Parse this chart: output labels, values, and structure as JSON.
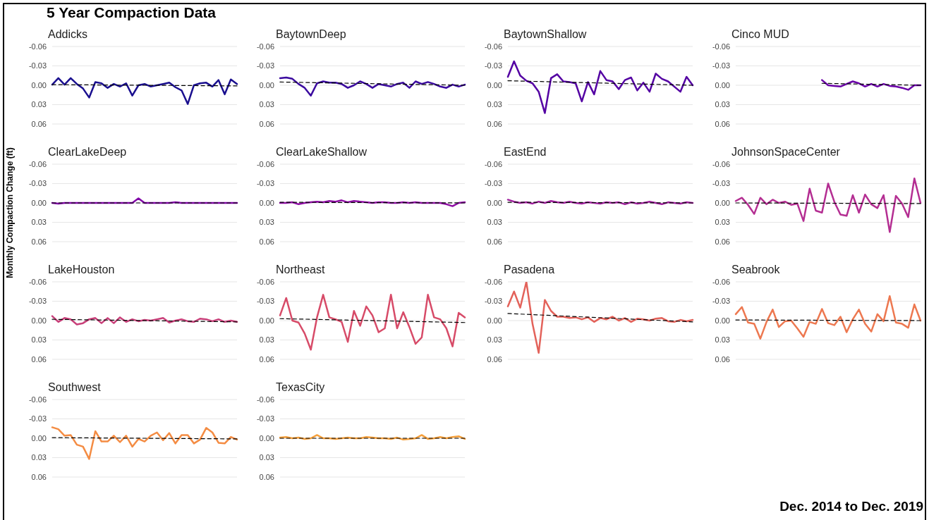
{
  "chart_data": [
    {
      "type": "line",
      "title": "Addicks",
      "annotations": [
        "5 Year Compaction Data"
      ],
      "categories": [
        null,
        null,
        null,
        null,
        null,
        null,
        null,
        null,
        null,
        null,
        null,
        null,
        null,
        null,
        null,
        null,
        null,
        null,
        null,
        null,
        null,
        null,
        null,
        null,
        null,
        null,
        null,
        null,
        null,
        null,
        null
      ],
      "ylim": [
        0.06,
        -0.06
      ],
      "yticks": [
        {
          "value": -0.06,
          "label": "-0.06"
        },
        {
          "value": -0.03,
          "label": "-0.03"
        },
        {
          "value": 0,
          "label": "0.00"
        },
        {
          "value": 0.03,
          "label": "0.03"
        },
        {
          "value": 0.06,
          "label": "0.06"
        }
      ],
      "grid": "y",
      "series": [
        {
          "color": "#1a0f8f",
          "values": [
            -0.001,
            -0.011,
            -0.001,
            -0.011,
            -0.002,
            0.005,
            0.019,
            -0.005,
            -0.003,
            0.004,
            -0.002,
            0.002,
            -0.003,
            0.016,
            0.0,
            -0.002,
            0.002,
            0.0,
            -0.002,
            -0.004,
            0.003,
            0.008,
            0.029,
            0.0,
            -0.003,
            -0.004,
            0.002,
            -0.008,
            0.014,
            -0.009,
            -0.002
          ]
        },
        {
          "type": "line",
          "color": "#000000",
          "line_style": "dashed",
          "values": [
            -0.001,
            null,
            null,
            null,
            null,
            null,
            null,
            null,
            null,
            null,
            null,
            null,
            null,
            null,
            null,
            null,
            null,
            null,
            null,
            null,
            null,
            null,
            null,
            null,
            null,
            null,
            null,
            null,
            null,
            null,
            0.001
          ]
        }
      ]
    },
    {
      "type": "line",
      "title": "BaytownDeep",
      "categories": [
        null,
        null,
        null,
        null,
        null,
        null,
        null,
        null,
        null,
        null,
        null,
        null,
        null,
        null,
        null,
        null,
        null,
        null,
        null,
        null,
        null,
        null,
        null,
        null,
        null,
        null,
        null,
        null,
        null,
        null,
        null
      ],
      "ylim": [
        0.06,
        -0.06
      ],
      "yticks": [
        {
          "value": -0.06,
          "label": "-0.06"
        },
        {
          "value": -0.03,
          "label": "-0.03"
        },
        {
          "value": 0,
          "label": "0.00"
        },
        {
          "value": 0.03,
          "label": "0.03"
        },
        {
          "value": 0.06,
          "label": "0.06"
        }
      ],
      "grid": "y",
      "series": [
        {
          "color": "#3b0a9f",
          "values": [
            -0.011,
            -0.012,
            -0.01,
            -0.002,
            0.004,
            0.016,
            -0.003,
            -0.006,
            -0.004,
            -0.004,
            -0.002,
            0.004,
            0.0,
            -0.006,
            -0.002,
            0.004,
            -0.002,
            0.0,
            0.002,
            -0.002,
            -0.004,
            0.004,
            -0.006,
            -0.002,
            -0.005,
            -0.002,
            0.002,
            0.004,
            -0.001,
            0.002,
            -0.001
          ]
        },
        {
          "type": "line",
          "color": "#000000",
          "line_style": "dashed",
          "values": [
            -0.005,
            null,
            null,
            null,
            null,
            null,
            null,
            null,
            null,
            null,
            null,
            null,
            null,
            null,
            null,
            null,
            null,
            null,
            null,
            null,
            null,
            null,
            null,
            null,
            null,
            null,
            null,
            null,
            null,
            null,
            0.0
          ]
        }
      ]
    },
    {
      "type": "line",
      "title": "BaytownShallow",
      "categories": [
        null,
        null,
        null,
        null,
        null,
        null,
        null,
        null,
        null,
        null,
        null,
        null,
        null,
        null,
        null,
        null,
        null,
        null,
        null,
        null,
        null,
        null,
        null,
        null,
        null,
        null,
        null,
        null,
        null,
        null,
        null
      ],
      "ylim": [
        0.06,
        -0.06
      ],
      "yticks": [
        {
          "value": -0.06,
          "label": "-0.06"
        },
        {
          "value": -0.03,
          "label": "-0.03"
        },
        {
          "value": 0,
          "label": "0.00"
        },
        {
          "value": 0.03,
          "label": "0.03"
        },
        {
          "value": 0.06,
          "label": "0.06"
        }
      ],
      "grid": "y",
      "series": [
        {
          "color": "#5402a3",
          "values": [
            -0.013,
            -0.037,
            -0.015,
            -0.007,
            -0.003,
            0.01,
            0.043,
            -0.011,
            -0.017,
            -0.006,
            -0.005,
            -0.003,
            0.025,
            -0.005,
            0.014,
            -0.022,
            -0.008,
            -0.006,
            0.006,
            -0.008,
            -0.012,
            0.008,
            -0.004,
            0.01,
            -0.018,
            -0.01,
            -0.006,
            0.002,
            0.01,
            -0.013,
            0.0
          ]
        },
        {
          "type": "line",
          "color": "#000000",
          "line_style": "dashed",
          "values": [
            -0.007,
            null,
            null,
            null,
            null,
            null,
            null,
            null,
            null,
            null,
            null,
            null,
            null,
            null,
            null,
            null,
            null,
            null,
            null,
            null,
            null,
            null,
            null,
            null,
            null,
            null,
            null,
            null,
            null,
            null,
            0.0
          ]
        }
      ]
    },
    {
      "type": "line",
      "title": "Cinco MUD",
      "categories": [
        null,
        null,
        null,
        null,
        null,
        null,
        null,
        null,
        null,
        null,
        null,
        null,
        null,
        null,
        null,
        null,
        null,
        null,
        null,
        null,
        null,
        null,
        null,
        null,
        null,
        null,
        null,
        null,
        null,
        null,
        null
      ],
      "ylim": [
        0.06,
        -0.06
      ],
      "yticks": [
        {
          "value": -0.06,
          "label": "-0.06"
        },
        {
          "value": -0.03,
          "label": "-0.03"
        },
        {
          "value": 0,
          "label": "0.00"
        },
        {
          "value": 0.03,
          "label": "0.03"
        },
        {
          "value": 0.06,
          "label": "0.06"
        }
      ],
      "grid": "y",
      "series": [
        {
          "color": "#6a00a8",
          "values": [
            null,
            null,
            null,
            null,
            null,
            null,
            null,
            null,
            null,
            null,
            null,
            null,
            null,
            null,
            -0.008,
            0.0,
            0.001,
            0.002,
            -0.002,
            -0.006,
            -0.003,
            0.002,
            -0.002,
            0.002,
            -0.002,
            0.001,
            0.002,
            0.004,
            0.007,
            0.0,
            0.0
          ]
        },
        {
          "type": "line",
          "color": "#000000",
          "line_style": "dashed",
          "values": [
            null,
            null,
            null,
            null,
            null,
            null,
            null,
            null,
            null,
            null,
            null,
            null,
            null,
            null,
            -0.003,
            null,
            null,
            null,
            null,
            null,
            null,
            null,
            null,
            null,
            null,
            null,
            null,
            null,
            null,
            null,
            0.0
          ]
        }
      ]
    },
    {
      "type": "line",
      "title": "ClearLakeDeep",
      "ylabel": "Monthly Compaction Change (ft)",
      "categories": [
        null,
        null,
        null,
        null,
        null,
        null,
        null,
        null,
        null,
        null,
        null,
        null,
        null,
        null,
        null,
        null,
        null,
        null,
        null,
        null,
        null,
        null,
        null,
        null,
        null,
        null,
        null,
        null,
        null,
        null,
        null
      ],
      "ylim": [
        0.06,
        -0.06
      ],
      "yticks": [
        {
          "value": -0.06,
          "label": "-0.06"
        },
        {
          "value": -0.03,
          "label": "-0.03"
        },
        {
          "value": 0,
          "label": "0.00"
        },
        {
          "value": 0.03,
          "label": "0.03"
        },
        {
          "value": 0.06,
          "label": "0.06"
        }
      ],
      "grid": "y",
      "series": [
        {
          "color": "#8104a7",
          "values": [
            0.0,
            0.001,
            0.0,
            0.0,
            0.0,
            0.0,
            0.0,
            0.0,
            0.0,
            0.0,
            0.0,
            0.0,
            0.0,
            0.0,
            -0.007,
            0.0,
            0.0,
            0.0,
            0.0,
            0.0,
            -0.001,
            0.0,
            0.0,
            0.0,
            0.0,
            0.0,
            0.0,
            0.0,
            0.0,
            0.0,
            0.0
          ]
        },
        {
          "type": "line",
          "color": "#000000",
          "line_style": "dashed",
          "values": [
            0.0,
            null,
            null,
            null,
            null,
            null,
            null,
            null,
            null,
            null,
            null,
            null,
            null,
            null,
            null,
            null,
            null,
            null,
            null,
            null,
            null,
            null,
            null,
            null,
            null,
            null,
            null,
            null,
            null,
            null,
            0.0
          ]
        }
      ]
    },
    {
      "type": "line",
      "title": "ClearLakeShallow",
      "categories": [
        null,
        null,
        null,
        null,
        null,
        null,
        null,
        null,
        null,
        null,
        null,
        null,
        null,
        null,
        null,
        null,
        null,
        null,
        null,
        null,
        null,
        null,
        null,
        null,
        null,
        null,
        null,
        null,
        null,
        null,
        null
      ],
      "ylim": [
        0.06,
        -0.06
      ],
      "yticks": [
        {
          "value": -0.06,
          "label": "-0.06"
        },
        {
          "value": -0.03,
          "label": "-0.03"
        },
        {
          "value": 0,
          "label": "0.00"
        },
        {
          "value": 0.03,
          "label": "0.03"
        },
        {
          "value": 0.06,
          "label": "0.06"
        }
      ],
      "grid": "y",
      "series": [
        {
          "color": "#8f0da4",
          "values": [
            0.0,
            0.0,
            -0.001,
            0.002,
            0.0,
            -0.001,
            -0.002,
            -0.001,
            -0.003,
            -0.002,
            -0.004,
            -0.001,
            -0.003,
            -0.002,
            -0.001,
            0.0,
            -0.001,
            -0.001,
            0.0,
            0.0,
            -0.001,
            0.0,
            -0.001,
            0.0,
            0.0,
            0.0,
            0.0,
            0.002,
            0.005,
            0.0,
            -0.001
          ]
        },
        {
          "type": "line",
          "color": "#000000",
          "line_style": "dashed",
          "values": [
            -0.001,
            null,
            null,
            null,
            null,
            null,
            null,
            null,
            null,
            null,
            null,
            null,
            null,
            null,
            null,
            null,
            null,
            null,
            null,
            null,
            null,
            null,
            null,
            null,
            null,
            null,
            null,
            null,
            null,
            null,
            0.0
          ]
        }
      ]
    },
    {
      "type": "line",
      "title": "EastEnd",
      "categories": [
        null,
        null,
        null,
        null,
        null,
        null,
        null,
        null,
        null,
        null,
        null,
        null,
        null,
        null,
        null,
        null,
        null,
        null,
        null,
        null,
        null,
        null,
        null,
        null,
        null,
        null,
        null,
        null,
        null,
        null,
        null
      ],
      "ylim": [
        0.06,
        -0.06
      ],
      "yticks": [
        {
          "value": -0.06,
          "label": "-0.06"
        },
        {
          "value": -0.03,
          "label": "-0.03"
        },
        {
          "value": 0,
          "label": "0.00"
        },
        {
          "value": 0.03,
          "label": "0.03"
        },
        {
          "value": 0.06,
          "label": "0.06"
        }
      ],
      "grid": "y",
      "series": [
        {
          "color": "#a0209d",
          "values": [
            -0.005,
            -0.002,
            0.0,
            -0.001,
            0.001,
            -0.002,
            0.0,
            -0.003,
            -0.001,
            0.0,
            -0.002,
            0.0,
            0.001,
            -0.001,
            0.0,
            0.001,
            -0.001,
            0.0,
            -0.001,
            0.002,
            -0.001,
            0.001,
            0.0,
            -0.002,
            0.0,
            0.002,
            -0.001,
            0.0,
            0.001,
            -0.001,
            0.0
          ]
        },
        {
          "type": "line",
          "color": "#000000",
          "line_style": "dashed",
          "values": [
            -0.001,
            null,
            null,
            null,
            null,
            null,
            null,
            null,
            null,
            null,
            null,
            null,
            null,
            null,
            null,
            null,
            null,
            null,
            null,
            null,
            null,
            null,
            null,
            null,
            null,
            null,
            null,
            null,
            null,
            null,
            0.0
          ]
        }
      ]
    },
    {
      "type": "line",
      "title": "JohnsonSpaceCenter",
      "categories": [
        null,
        null,
        null,
        null,
        null,
        null,
        null,
        null,
        null,
        null,
        null,
        null,
        null,
        null,
        null,
        null,
        null,
        null,
        null,
        null,
        null,
        null,
        null,
        null,
        null,
        null,
        null,
        null,
        null,
        null,
        null
      ],
      "ylim": [
        0.06,
        -0.06
      ],
      "yticks": [
        {
          "value": -0.06,
          "label": "-0.06"
        },
        {
          "value": -0.03,
          "label": "-0.03"
        },
        {
          "value": 0,
          "label": "0.00"
        },
        {
          "value": 0.03,
          "label": "0.03"
        },
        {
          "value": 0.06,
          "label": "0.06"
        }
      ],
      "grid": "y",
      "series": [
        {
          "color": "#b42e92",
          "values": [
            -0.003,
            -0.008,
            0.003,
            0.017,
            -0.008,
            0.002,
            -0.005,
            0.0,
            -0.002,
            0.003,
            0.001,
            0.028,
            -0.022,
            0.012,
            0.015,
            -0.03,
            -0.002,
            0.018,
            0.02,
            -0.012,
            0.015,
            -0.013,
            0.002,
            0.008,
            -0.012,
            0.045,
            -0.011,
            0.001,
            0.022,
            -0.038,
            0.0
          ]
        },
        {
          "type": "line",
          "color": "#000000",
          "line_style": "dashed",
          "values": [
            0.0,
            null,
            null,
            null,
            null,
            null,
            null,
            null,
            null,
            null,
            null,
            null,
            null,
            null,
            null,
            null,
            null,
            null,
            null,
            null,
            null,
            null,
            null,
            null,
            null,
            null,
            null,
            null,
            null,
            null,
            0.001
          ]
        }
      ]
    },
    {
      "type": "line",
      "title": "LakeHouston",
      "categories": [
        null,
        null,
        null,
        null,
        null,
        null,
        null,
        null,
        null,
        null,
        null,
        null,
        null,
        null,
        null,
        null,
        null,
        null,
        null,
        null,
        null,
        null,
        null,
        null,
        null,
        null,
        null,
        null,
        null,
        null,
        null
      ],
      "ylim": [
        0.06,
        -0.06
      ],
      "yticks": [
        {
          "value": -0.06,
          "label": "-0.06"
        },
        {
          "value": -0.03,
          "label": "-0.03"
        },
        {
          "value": 0,
          "label": "0.00"
        },
        {
          "value": 0.03,
          "label": "0.03"
        },
        {
          "value": 0.06,
          "label": "0.06"
        }
      ],
      "grid": "y",
      "series": [
        {
          "color": "#c9407a",
          "values": [
            -0.007,
            0.002,
            -0.004,
            -0.002,
            0.006,
            0.004,
            -0.002,
            -0.004,
            0.004,
            -0.004,
            0.004,
            -0.005,
            0.002,
            -0.002,
            0.001,
            -0.001,
            0.0,
            -0.002,
            -0.004,
            0.003,
            0.0,
            -0.002,
            0.001,
            0.002,
            -0.003,
            -0.002,
            0.001,
            -0.002,
            0.002,
            0.0,
            0.002
          ]
        },
        {
          "type": "line",
          "color": "#000000",
          "line_style": "dashed",
          "values": [
            -0.002,
            null,
            null,
            null,
            null,
            null,
            null,
            null,
            null,
            null,
            null,
            null,
            null,
            null,
            null,
            null,
            null,
            null,
            null,
            null,
            null,
            null,
            null,
            null,
            null,
            null,
            null,
            null,
            null,
            null,
            0.002
          ]
        }
      ]
    },
    {
      "type": "line",
      "title": "Northeast",
      "categories": [
        null,
        null,
        null,
        null,
        null,
        null,
        null,
        null,
        null,
        null,
        null,
        null,
        null,
        null,
        null,
        null,
        null,
        null,
        null,
        null,
        null,
        null,
        null,
        null,
        null,
        null,
        null,
        null,
        null,
        null,
        null
      ],
      "ylim": [
        0.06,
        -0.06
      ],
      "yticks": [
        {
          "value": -0.06,
          "label": "-0.06"
        },
        {
          "value": -0.03,
          "label": "-0.03"
        },
        {
          "value": 0,
          "label": "0.00"
        },
        {
          "value": 0.03,
          "label": "0.03"
        },
        {
          "value": 0.06,
          "label": "0.06"
        }
      ],
      "grid": "y",
      "series": [
        {
          "color": "#d74b68",
          "values": [
            -0.008,
            -0.035,
            0.0,
            0.003,
            0.02,
            0.045,
            -0.005,
            -0.04,
            -0.005,
            -0.002,
            0.002,
            0.033,
            -0.015,
            0.008,
            -0.022,
            -0.008,
            0.018,
            0.012,
            -0.04,
            0.012,
            -0.013,
            0.01,
            0.036,
            0.026,
            -0.04,
            -0.005,
            -0.002,
            0.012,
            0.04,
            -0.012,
            -0.005
          ]
        },
        {
          "type": "line",
          "color": "#000000",
          "line_style": "dashed",
          "values": [
            -0.003,
            null,
            null,
            null,
            null,
            null,
            null,
            null,
            null,
            null,
            null,
            null,
            null,
            null,
            null,
            null,
            null,
            null,
            null,
            null,
            null,
            null,
            null,
            null,
            null,
            null,
            null,
            null,
            null,
            null,
            0.003
          ]
        }
      ]
    },
    {
      "type": "line",
      "title": "Pasadena",
      "categories": [
        null,
        null,
        null,
        null,
        null,
        null,
        null,
        null,
        null,
        null,
        null,
        null,
        null,
        null,
        null,
        null,
        null,
        null,
        null,
        null,
        null,
        null,
        null,
        null,
        null,
        null,
        null,
        null,
        null,
        null,
        null
      ],
      "ylim": [
        0.06,
        -0.06
      ],
      "yticks": [
        {
          "value": -0.06,
          "label": "-0.06"
        },
        {
          "value": -0.03,
          "label": "-0.03"
        },
        {
          "value": 0,
          "label": "0.00"
        },
        {
          "value": 0.03,
          "label": "0.03"
        },
        {
          "value": 0.06,
          "label": "0.06"
        }
      ],
      "grid": "y",
      "series": [
        {
          "color": "#e3625a",
          "values": [
            -0.022,
            -0.045,
            -0.02,
            -0.06,
            0.005,
            0.05,
            -0.032,
            -0.015,
            -0.006,
            -0.006,
            -0.004,
            -0.005,
            -0.002,
            -0.005,
            0.002,
            -0.004,
            -0.002,
            -0.006,
            0.0,
            -0.004,
            0.002,
            -0.003,
            -0.002,
            0.0,
            -0.003,
            -0.004,
            0.001,
            0.002,
            -0.001,
            0.001,
            -0.001
          ]
        },
        {
          "type": "line",
          "color": "#000000",
          "line_style": "dashed",
          "values": [
            -0.011,
            null,
            null,
            null,
            null,
            null,
            null,
            null,
            null,
            null,
            null,
            null,
            null,
            null,
            null,
            null,
            null,
            null,
            null,
            null,
            null,
            null,
            null,
            null,
            null,
            null,
            null,
            null,
            null,
            null,
            0.002
          ]
        }
      ]
    },
    {
      "type": "line",
      "title": "Seabrook",
      "categories": [
        null,
        null,
        null,
        null,
        null,
        null,
        null,
        null,
        null,
        null,
        null,
        null,
        null,
        null,
        null,
        null,
        null,
        null,
        null,
        null,
        null,
        null,
        null,
        null,
        null,
        null,
        null,
        null,
        null,
        null,
        null
      ],
      "ylim": [
        0.06,
        -0.06
      ],
      "yticks": [
        {
          "value": -0.06,
          "label": "-0.06"
        },
        {
          "value": -0.03,
          "label": "-0.03"
        },
        {
          "value": 0,
          "label": "0.00"
        },
        {
          "value": 0.03,
          "label": "0.03"
        },
        {
          "value": 0.06,
          "label": "0.06"
        }
      ],
      "grid": "y",
      "series": [
        {
          "color": "#ed7850",
          "values": [
            -0.01,
            -0.021,
            0.003,
            0.005,
            0.028,
            0.002,
            -0.017,
            0.01,
            0.001,
            0.0,
            0.012,
            0.025,
            0.002,
            0.005,
            -0.018,
            0.004,
            0.007,
            -0.006,
            0.018,
            -0.002,
            -0.017,
            0.005,
            0.017,
            -0.01,
            0.001,
            -0.038,
            0.003,
            0.005,
            0.011,
            -0.025,
            0.0
          ]
        },
        {
          "type": "line",
          "color": "#000000",
          "line_style": "dashed",
          "values": [
            -0.001,
            null,
            null,
            null,
            null,
            null,
            null,
            null,
            null,
            null,
            null,
            null,
            null,
            null,
            null,
            null,
            null,
            null,
            null,
            null,
            null,
            null,
            null,
            null,
            null,
            null,
            null,
            null,
            null,
            null,
            0.0
          ]
        }
      ]
    },
    {
      "type": "line",
      "title": "Southwest",
      "categories": [
        null,
        null,
        null,
        null,
        null,
        null,
        null,
        null,
        null,
        null,
        null,
        null,
        null,
        null,
        null,
        null,
        null,
        null,
        null,
        null,
        null,
        null,
        null,
        null,
        null,
        null,
        null,
        null,
        null,
        null,
        null
      ],
      "ylim": [
        0.06,
        -0.06
      ],
      "yticks": [
        {
          "value": -0.06,
          "label": "-0.06"
        },
        {
          "value": -0.03,
          "label": "-0.03"
        },
        {
          "value": 0,
          "label": "0.00"
        },
        {
          "value": 0.03,
          "label": "0.03"
        },
        {
          "value": 0.06,
          "label": "0.06"
        }
      ],
      "grid": "y",
      "series": [
        {
          "color": "#f48c43",
          "values": [
            -0.017,
            -0.014,
            -0.004,
            -0.005,
            0.01,
            0.013,
            0.032,
            -0.011,
            0.005,
            0.005,
            -0.004,
            0.006,
            -0.004,
            0.013,
            0.001,
            0.005,
            -0.004,
            -0.009,
            0.003,
            -0.008,
            0.008,
            -0.005,
            -0.005,
            0.008,
            0.002,
            -0.016,
            -0.009,
            0.007,
            0.008,
            -0.002,
            0.002
          ]
        },
        {
          "type": "line",
          "color": "#000000",
          "line_style": "dashed",
          "values": [
            -0.001,
            null,
            null,
            null,
            null,
            null,
            null,
            null,
            null,
            null,
            null,
            null,
            null,
            null,
            null,
            null,
            null,
            null,
            null,
            null,
            null,
            null,
            null,
            null,
            null,
            null,
            null,
            null,
            null,
            null,
            0.001
          ]
        }
      ]
    },
    {
      "type": "line",
      "title": "TexasCity",
      "annotations": [
        "Dec. 2014 to Dec. 2019"
      ],
      "categories": [
        null,
        null,
        null,
        null,
        null,
        null,
        null,
        null,
        null,
        null,
        null,
        null,
        null,
        null,
        null,
        null,
        null,
        null,
        null,
        null,
        null,
        null,
        null,
        null,
        null,
        null,
        null,
        null,
        null,
        null,
        null
      ],
      "ylim": [
        0.06,
        -0.06
      ],
      "yticks": [
        {
          "value": -0.06,
          "label": "-0.06"
        },
        {
          "value": -0.03,
          "label": "-0.03"
        },
        {
          "value": 0,
          "label": "0.00"
        },
        {
          "value": 0.03,
          "label": "0.03"
        },
        {
          "value": 0.06,
          "label": "0.06"
        }
      ],
      "grid": "y",
      "series": [
        {
          "color": "#f5a03c",
          "values": [
            -0.001,
            -0.002,
            0.0,
            -0.001,
            0.001,
            0.0,
            -0.005,
            0.0,
            0.0,
            0.001,
            0.0,
            -0.001,
            0.0,
            0.0,
            -0.002,
            -0.001,
            0.0,
            0.0,
            0.001,
            -0.001,
            0.002,
            0.001,
            0.0,
            -0.005,
            0.001,
            0.0,
            -0.002,
            0.0,
            -0.002,
            -0.003,
            0.001
          ]
        },
        {
          "type": "line",
          "color": "#000000",
          "line_style": "dashed",
          "values": [
            0.0,
            null,
            null,
            null,
            null,
            null,
            null,
            null,
            null,
            null,
            null,
            null,
            null,
            null,
            null,
            null,
            null,
            null,
            null,
            null,
            null,
            null,
            null,
            null,
            null,
            null,
            null,
            null,
            null,
            null,
            0.0
          ]
        }
      ]
    }
  ]
}
